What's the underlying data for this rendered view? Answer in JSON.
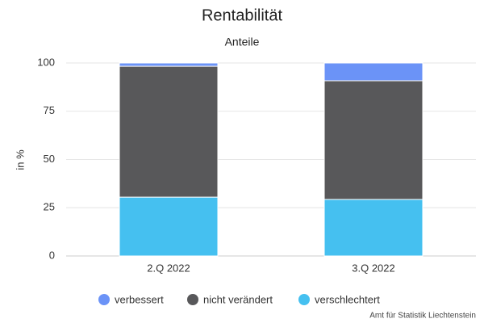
{
  "chart_data": {
    "type": "stacked-bar",
    "title": "Rentabilität",
    "subtitle": "Anteile",
    "y_label": "in %",
    "credit": "Amt für Statistik Liechtenstein",
    "categories": [
      "2.Q 2022",
      "3.Q 2022"
    ],
    "series": [
      {
        "name": "verbessert",
        "color": "#6b93f7",
        "values": [
          1.7,
          9.2
        ]
      },
      {
        "name": "nicht verändert",
        "color": "#58585a",
        "values": [
          67.8,
          61.5
        ]
      },
      {
        "name": "verschlechtert",
        "color": "#45c0f0",
        "values": [
          30.5,
          29.3
        ]
      }
    ],
    "ylim": [
      0,
      100
    ],
    "yticks": [
      0,
      25,
      50,
      75,
      100
    ],
    "grid": true
  }
}
